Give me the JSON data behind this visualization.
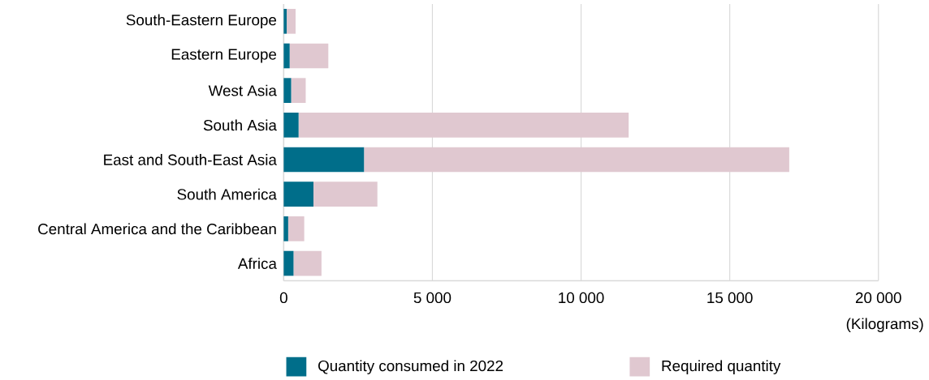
{
  "chart_data": {
    "type": "bar",
    "orientation": "horizontal",
    "stacked": true,
    "categories": [
      "South-Eastern Europe",
      "Eastern Europe",
      "West Asia",
      "South Asia",
      "East and South-East Asia",
      "South America",
      "Central America and the Caribbean",
      "Africa"
    ],
    "series": [
      {
        "name": "Quantity consumed in 2022",
        "color": "#006e8a",
        "values": [
          100,
          200,
          250,
          500,
          2700,
          1000,
          150,
          330
        ]
      },
      {
        "name": "Required quantity",
        "color": "#e0c8d0",
        "values": [
          300,
          1300,
          490,
          11100,
          14300,
          2150,
          540,
          940
        ]
      }
    ],
    "xlim": [
      0,
      20000
    ],
    "xticks": [
      0,
      {
        "value": 5000,
        "label": "5 000"
      },
      {
        "value": 10000,
        "label": "10 000"
      },
      {
        "value": 15000,
        "label": "15 000"
      },
      {
        "value": 20000,
        "label": "20 000"
      }
    ],
    "xlabel": "(Kilograms)",
    "grid": "x",
    "legend": "bottom"
  }
}
